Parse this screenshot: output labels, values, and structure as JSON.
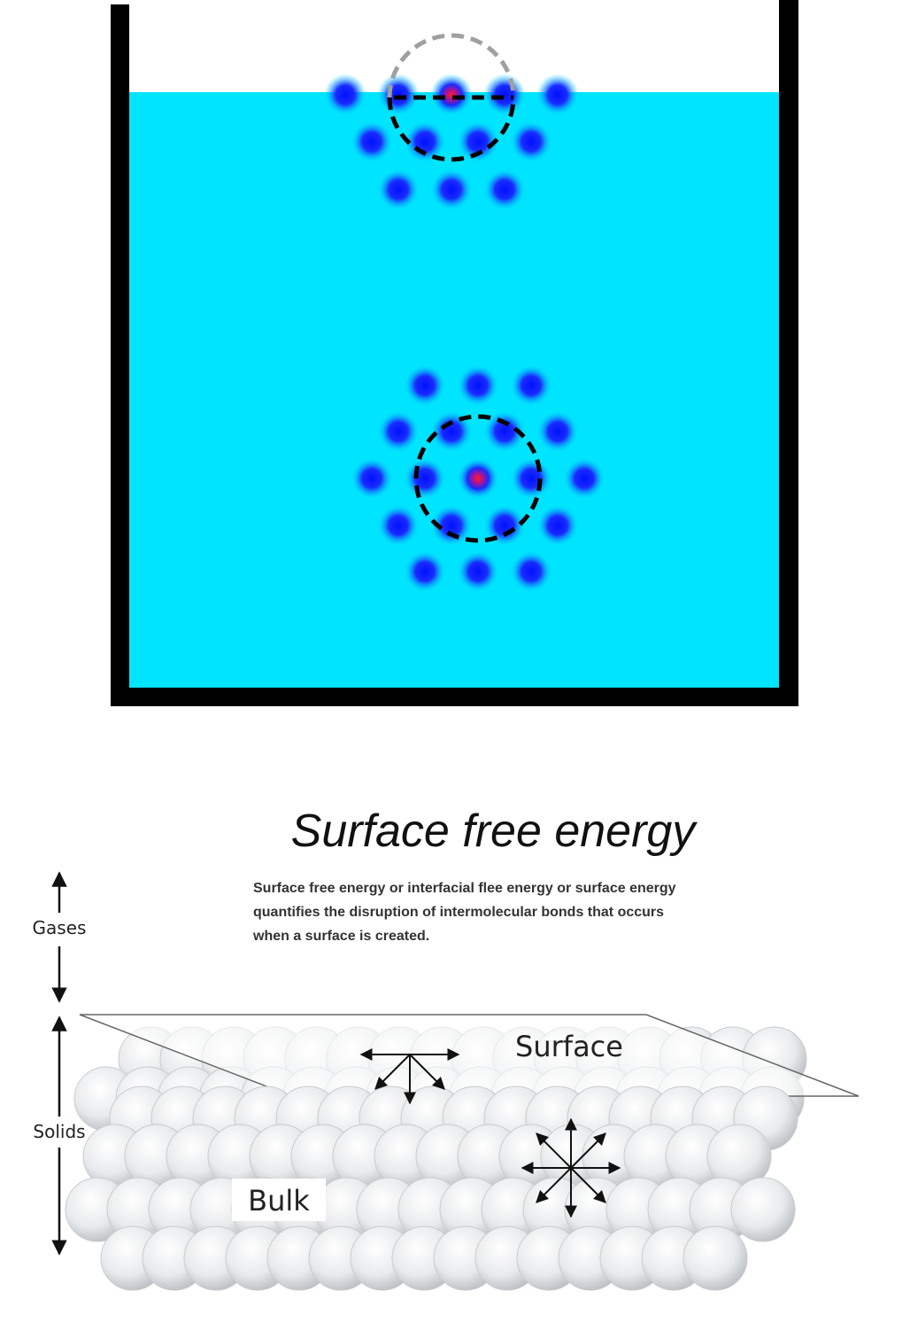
{
  "title": "Surface free energy",
  "description": [
    "Surface free energy or interfacial flee energy or surface energy",
    "quantifies the disruption of intermolecular bonds that occurs",
    "when a surface is created."
  ],
  "labels": {
    "gases": "Gases",
    "solids": "Solids",
    "surface": "Surface",
    "bulk": "Bulk"
  }
}
